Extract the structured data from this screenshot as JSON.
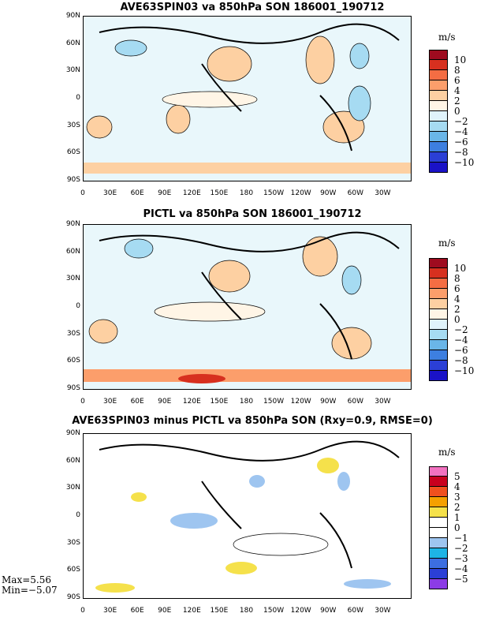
{
  "panels": [
    {
      "title": "AVE63SPIN03 va 850hPa SON 186001_190712",
      "unit": "m/s",
      "colorbar": {
        "labels": [
          "10",
          "8",
          "6",
          "4",
          "2",
          "0",
          "−2",
          "−4",
          "−6",
          "−8",
          "−10"
        ],
        "colors": [
          "#9e0b1f",
          "#d7301f",
          "#f46d43",
          "#fc9e6b",
          "#fdd0a2",
          "#fff5e6",
          "#e0f3fb",
          "#a6dbf2",
          "#6ab6e8",
          "#3d7fe0",
          "#2b3fd6",
          "#1a12c7"
        ]
      }
    },
    {
      "title": "PICTL va 850hPa SON 186001_190712",
      "unit": "m/s",
      "colorbar": {
        "labels": [
          "10",
          "8",
          "6",
          "4",
          "2",
          "0",
          "−2",
          "−4",
          "−6",
          "−8",
          "−10"
        ],
        "colors": [
          "#9e0b1f",
          "#d7301f",
          "#f46d43",
          "#fc9e6b",
          "#fdd0a2",
          "#fff5e6",
          "#e0f3fb",
          "#a6dbf2",
          "#6ab6e8",
          "#3d7fe0",
          "#2b3fd6",
          "#1a12c7"
        ]
      }
    },
    {
      "title": "AVE63SPIN03 minus PICTL va 850hPa SON (Rxy=0.9, RMSE=0)",
      "unit": "m/s",
      "colorbar": {
        "labels": [
          "5",
          "4",
          "3",
          "2",
          "1",
          "0",
          "−1",
          "−2",
          "−3",
          "−4",
          "−5"
        ],
        "colors": [
          "#f272c0",
          "#c8001e",
          "#f0501e",
          "#f5a000",
          "#f5e14b",
          "#ffffff",
          "#ffffff",
          "#9ec5f0",
          "#1eb4e6",
          "#3c6ee0",
          "#2b3fd6",
          "#8c3ce6"
        ]
      }
    }
  ],
  "lat_labels": [
    "90N",
    "60N",
    "30N",
    "0",
    "30S",
    "60S",
    "90S"
  ],
  "lon_labels": [
    "0",
    "30E",
    "60E",
    "90E",
    "120E",
    "150E",
    "180",
    "150W",
    "120W",
    "90W",
    "60W",
    "30W"
  ],
  "stats": {
    "max": "Max=5.56",
    "min": "Min=−5.07"
  }
}
